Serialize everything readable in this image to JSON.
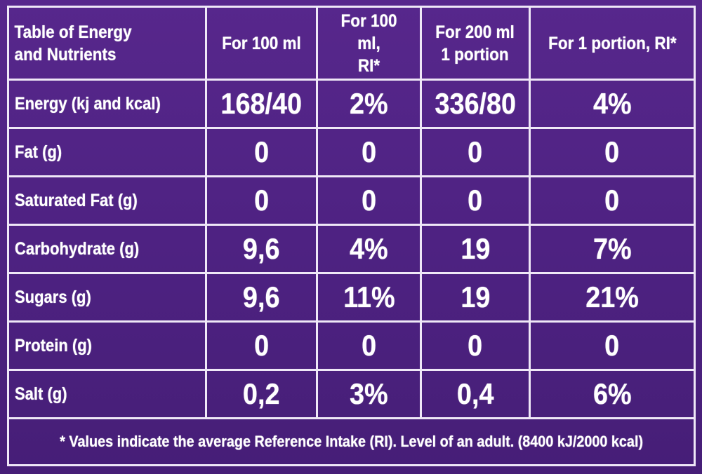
{
  "table": {
    "headers": [
      "Table of Energy and Nutrients",
      "For 100 ml",
      "For 100 ml, RI*",
      "For 200 ml 1 portion",
      "For 1 portion, RI*"
    ],
    "rows": [
      {
        "label": "Energy (kj and kcal)",
        "values": [
          "168/40",
          "2%",
          "336/80",
          "4%"
        ]
      },
      {
        "label": "Fat (g)",
        "values": [
          "0",
          "0",
          "0",
          "0"
        ]
      },
      {
        "label": "Saturated Fat (g)",
        "values": [
          "0",
          "0",
          "0",
          "0"
        ]
      },
      {
        "label": "Carbohydrate (g)",
        "values": [
          "9,6",
          "4%",
          "19",
          "7%"
        ]
      },
      {
        "label": "Sugars (g)",
        "values": [
          "9,6",
          "11%",
          "19",
          "21%"
        ]
      },
      {
        "label": "Protein (g)",
        "values": [
          "0",
          "0",
          "0",
          "0"
        ]
      },
      {
        "label": "Salt (g)",
        "values": [
          "0,2",
          "3%",
          "0,4",
          "6%"
        ]
      }
    ],
    "footnote": "* Values indicate the average Reference Intake (RI). Level of an adult. (8400 kJ/2000 kcal)"
  },
  "colors": {
    "background": "#4e2282",
    "grid_lines": "#efe8f7",
    "text": "#ffffff"
  }
}
